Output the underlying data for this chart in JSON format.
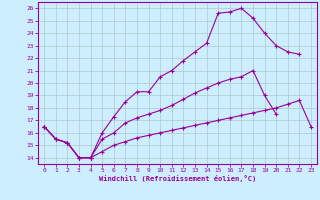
{
  "xlabel": "Windchill (Refroidissement éolien,°C)",
  "xlim": [
    -0.5,
    23.5
  ],
  "ylim": [
    13.5,
    26.5
  ],
  "xticks": [
    0,
    1,
    2,
    3,
    4,
    5,
    6,
    7,
    8,
    9,
    10,
    11,
    12,
    13,
    14,
    15,
    16,
    17,
    18,
    19,
    20,
    21,
    22,
    23
  ],
  "yticks": [
    14,
    15,
    16,
    17,
    18,
    19,
    20,
    21,
    22,
    23,
    24,
    25,
    26
  ],
  "bg_color": "#cceeff",
  "line_color": "#990099",
  "grid_color": "#b0c8c8",
  "line1_x": [
    0,
    1,
    2,
    3,
    4,
    5,
    6,
    7,
    8,
    9,
    10,
    11,
    12,
    13,
    14,
    15,
    16,
    17,
    18,
    19,
    20,
    21,
    22,
    23
  ],
  "line1_y": [
    16.5,
    15.5,
    15.2,
    14.0,
    14.0,
    16.0,
    17.3,
    18.5,
    19.3,
    19.3,
    20.5,
    21.0,
    21.8,
    22.5,
    23.2,
    25.6,
    25.7,
    26.0,
    25.2,
    24.0,
    23.0,
    22.5,
    22.3,
    null
  ],
  "line2_x": [
    0,
    1,
    2,
    3,
    4,
    5,
    6,
    7,
    8,
    9,
    10,
    11,
    12,
    13,
    14,
    15,
    16,
    17,
    18,
    19,
    20,
    21,
    22,
    23
  ],
  "line2_y": [
    16.5,
    15.5,
    15.2,
    14.0,
    14.0,
    15.5,
    16.0,
    16.8,
    17.2,
    17.5,
    17.8,
    18.2,
    18.7,
    19.2,
    19.6,
    20.0,
    20.3,
    20.5,
    21.0,
    19.0,
    17.5,
    null,
    null,
    null
  ],
  "line3_x": [
    0,
    1,
    2,
    3,
    4,
    5,
    6,
    7,
    8,
    9,
    10,
    11,
    12,
    13,
    14,
    15,
    16,
    17,
    18,
    19,
    20,
    21,
    22,
    23
  ],
  "line3_y": [
    16.5,
    15.5,
    15.2,
    14.0,
    14.0,
    14.5,
    15.0,
    15.3,
    15.6,
    15.8,
    16.0,
    16.2,
    16.4,
    16.6,
    16.8,
    17.0,
    17.2,
    17.4,
    17.6,
    17.8,
    18.0,
    18.3,
    18.6,
    16.5
  ]
}
